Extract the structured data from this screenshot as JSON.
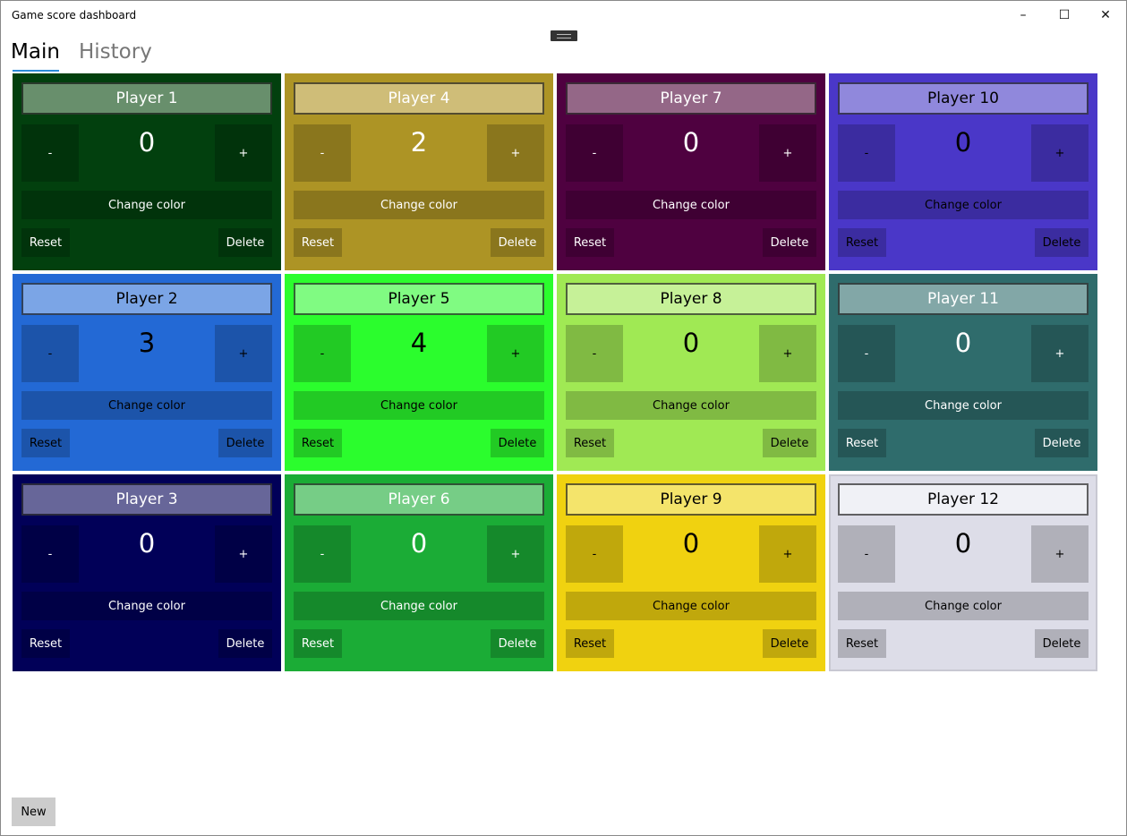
{
  "window": {
    "title": "Game score dashboard",
    "minimize": "–",
    "maximize": "☐",
    "close": "✕"
  },
  "tabs": [
    {
      "label": "Main",
      "selected": true
    },
    {
      "label": "History",
      "selected": false
    }
  ],
  "labels": {
    "minus": "-",
    "plus": "+",
    "change_color": "Change color",
    "reset": "Reset",
    "delete": "Delete"
  },
  "players": [
    {
      "name": "Player 1",
      "score": "0",
      "bg": "#02400e",
      "name_bg": "#688f6c",
      "text": "#ffffff"
    },
    {
      "name": "Player 2",
      "score": "3",
      "bg": "#2369d5",
      "name_bg": "#7ba5e6",
      "text": "#000000"
    },
    {
      "name": "Player 3",
      "score": "0",
      "bg": "#010058",
      "name_bg": "#676699",
      "text": "#ffffff"
    },
    {
      "name": "Player 4",
      "score": "2",
      "bg": "#ad9425",
      "name_bg": "#cfbd78",
      "text": "#ffffff"
    },
    {
      "name": "Player 5",
      "score": "4",
      "bg": "#2bfd2d",
      "name_bg": "#80fb82",
      "text": "#000000"
    },
    {
      "name": "Player 6",
      "score": "0",
      "bg": "#1bac36",
      "name_bg": "#76cd86",
      "text": "#ffffff"
    },
    {
      "name": "Player 7",
      "score": "0",
      "bg": "#4f0140",
      "name_bg": "#946787",
      "text": "#ffffff"
    },
    {
      "name": "Player 8",
      "score": "0",
      "bg": "#a0e954",
      "name_bg": "#c6f198",
      "text": "#000000"
    },
    {
      "name": "Player 9",
      "score": "0",
      "bg": "#f0d210",
      "name_bg": "#f4e46b",
      "text": "#000000"
    },
    {
      "name": "Player 10",
      "score": "0",
      "bg": "#4a37c8",
      "name_bg": "#9088dc",
      "text": "#000000"
    },
    {
      "name": "Player 11",
      "score": "0",
      "bg": "#2f6c6c",
      "name_bg": "#82a7a7",
      "text": "#ffffff"
    },
    {
      "name": "Player 12",
      "score": "0",
      "bg": "#dddde8",
      "name_bg": "#f0f1f6",
      "text": "#000000"
    }
  ],
  "new_button": "New"
}
